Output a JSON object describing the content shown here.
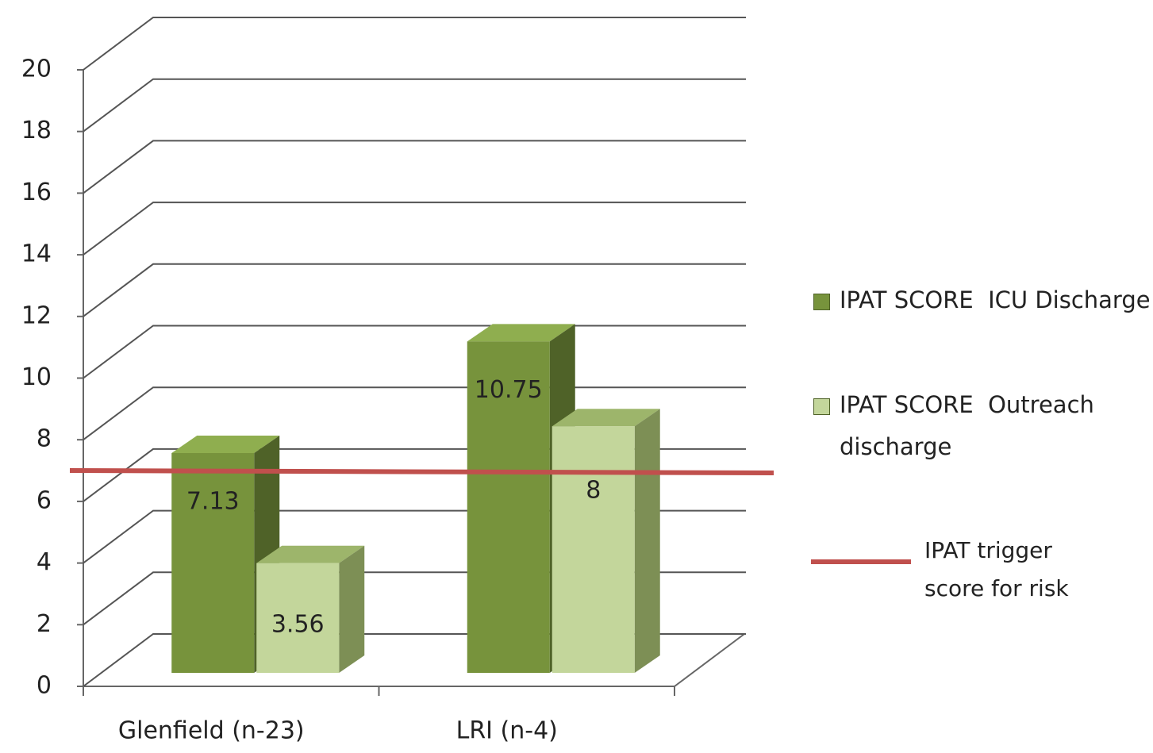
{
  "chart_data": {
    "type": "bar3d",
    "categories": [
      "Glenfield (n-23)",
      "LRI (n-4)"
    ],
    "series": [
      {
        "name": "IPAT SCORE  ICU Discharge",
        "color": "#77933c",
        "values": [
          7.13,
          10.75
        ]
      },
      {
        "name": "IPAT SCORE  Outreach discharge",
        "color": "#c3d69b",
        "values": [
          3.56,
          8
        ]
      }
    ],
    "reference_line": {
      "name": "IPAT trigger score for risk",
      "value": 7,
      "color": "#c0504d"
    },
    "ylim": [
      0,
      20
    ],
    "yticks": [
      0,
      2,
      4,
      6,
      8,
      10,
      12,
      14,
      16,
      18,
      20
    ],
    "grid": true
  }
}
